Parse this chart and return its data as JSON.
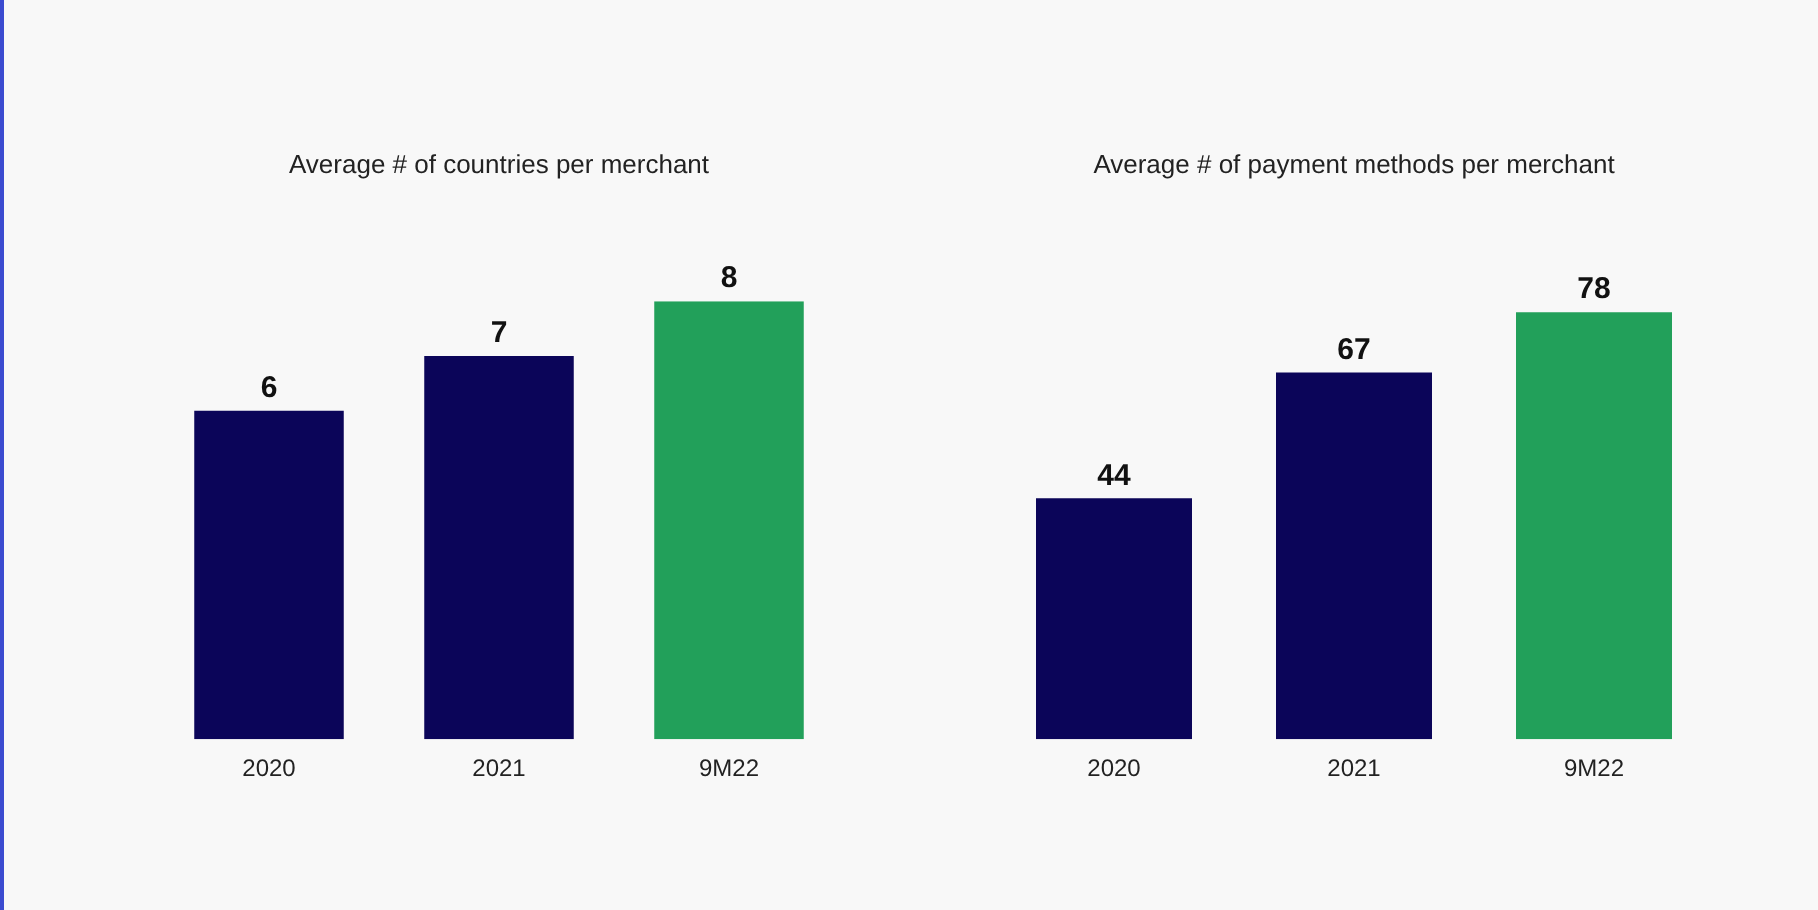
{
  "chart_data": [
    {
      "type": "bar",
      "title": "Average # of countries per merchant",
      "categories": [
        "2020",
        "2021",
        "9M22"
      ],
      "values": [
        6,
        7,
        8
      ],
      "colors": [
        "#0b0559",
        "#0b0559",
        "#22a05a"
      ],
      "data_labels": true,
      "tick_labels": "x",
      "grid": false,
      "legend": false
    },
    {
      "type": "bar",
      "title": "Average # of payment methods per merchant",
      "categories": [
        "2020",
        "2021",
        "9M22"
      ],
      "values": [
        44,
        67,
        78
      ],
      "colors": [
        "#0b0559",
        "#0b0559",
        "#22a05a"
      ],
      "data_labels": true,
      "tick_labels": "x",
      "grid": false,
      "legend": false
    }
  ]
}
